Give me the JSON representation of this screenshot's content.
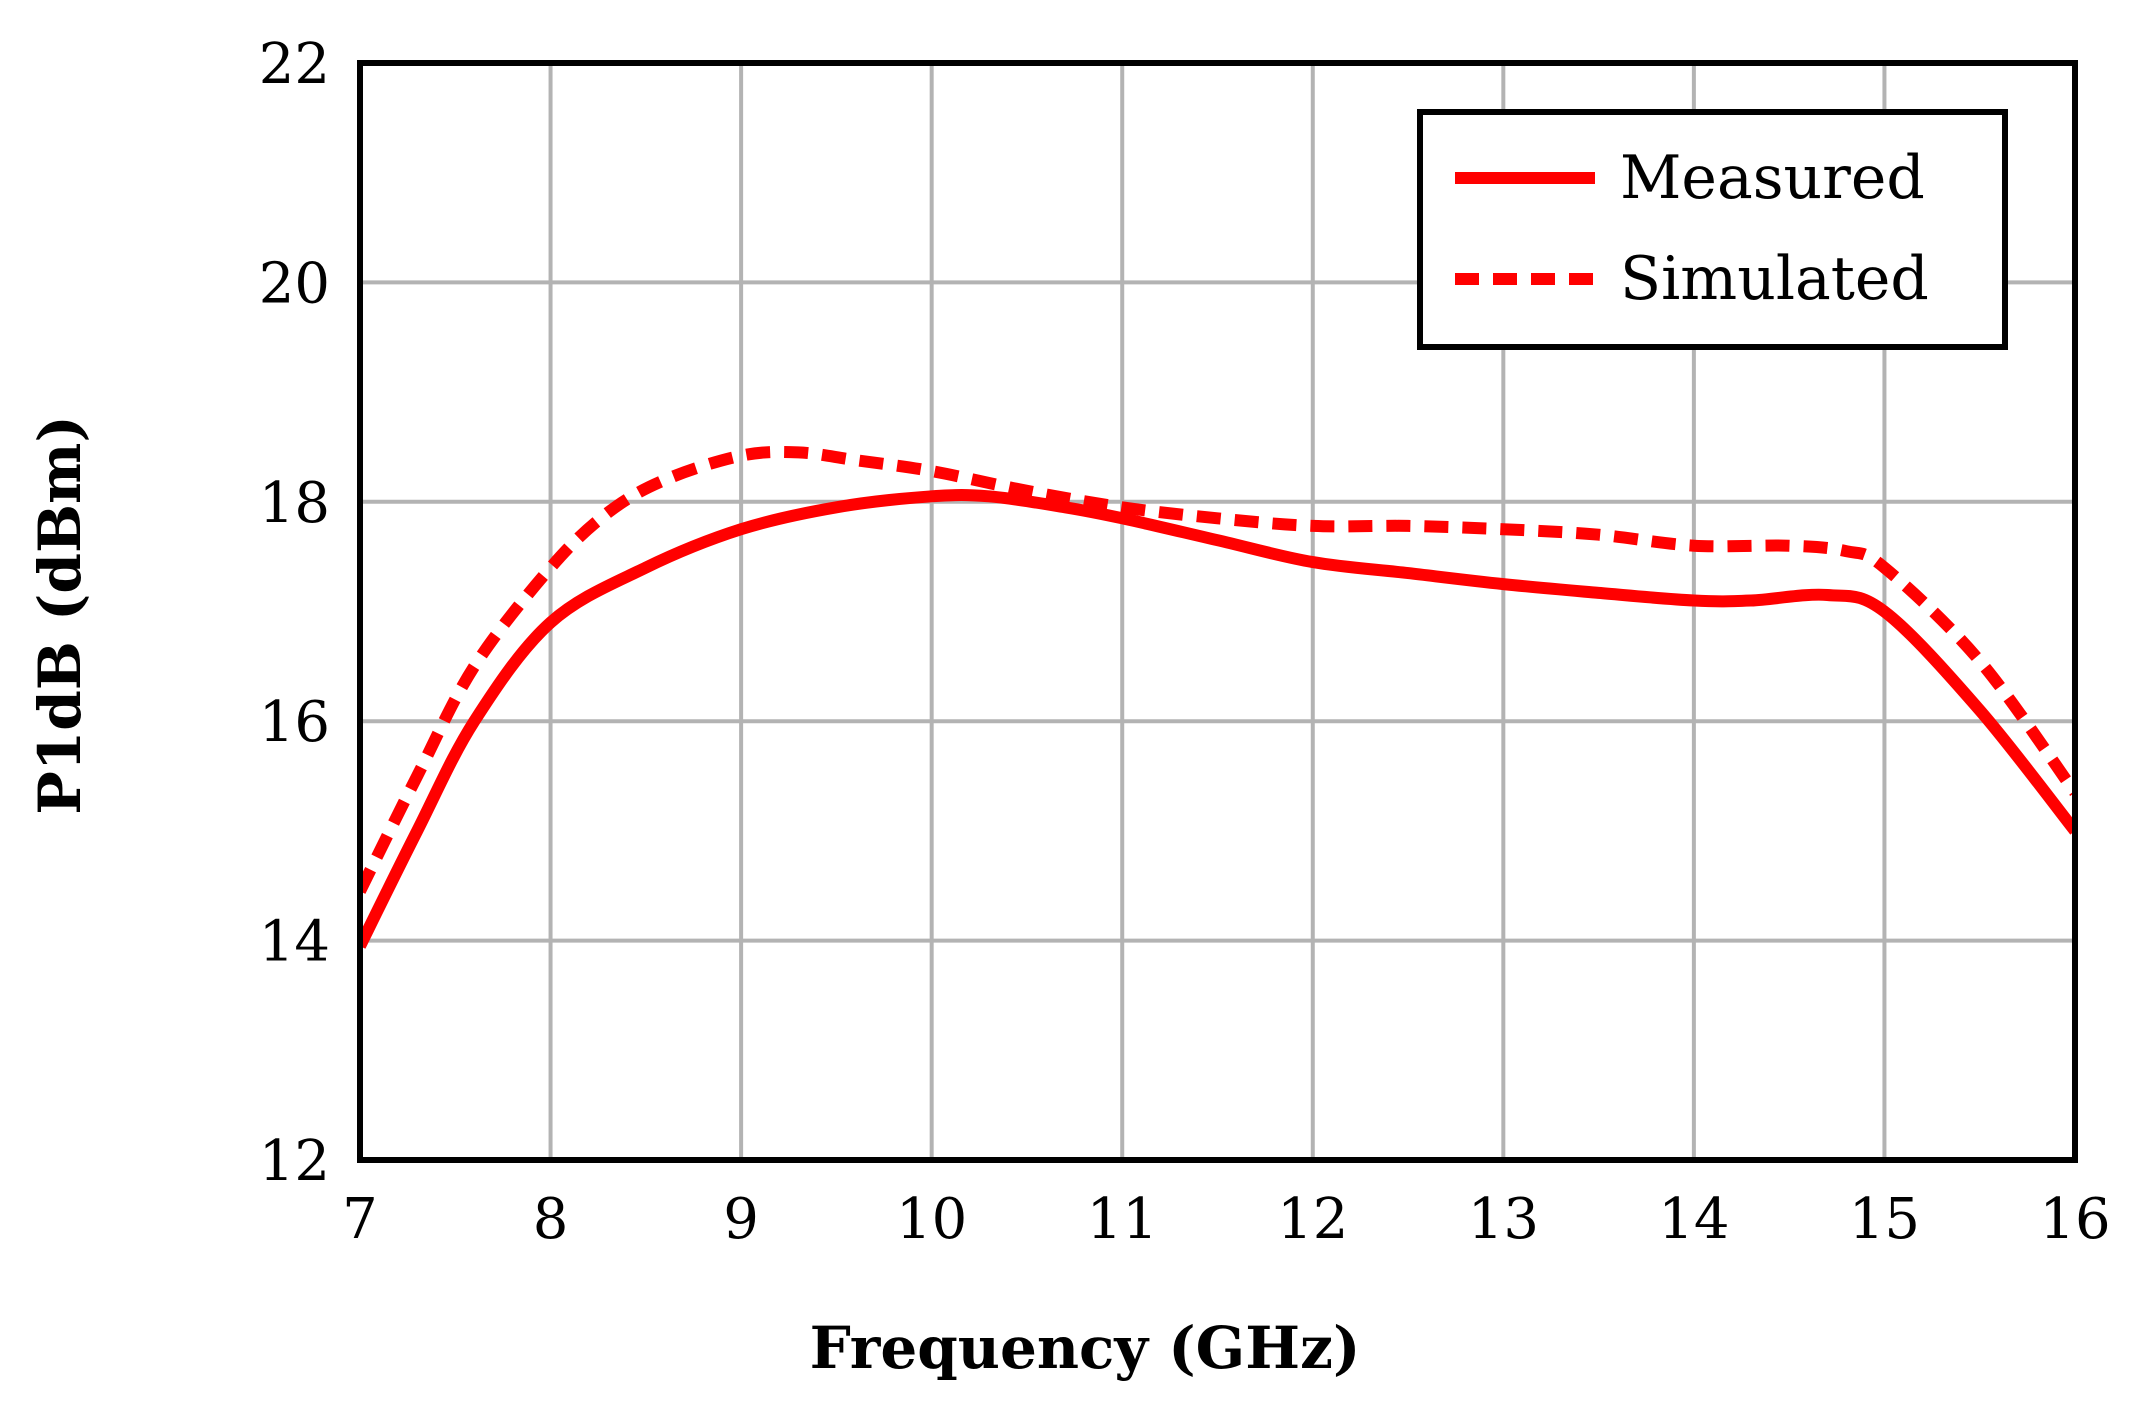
{
  "chart_data": {
    "type": "line",
    "title": "",
    "xlabel": "Frequency (GHz)",
    "ylabel": "P1dB (dBm)",
    "xlim": [
      7,
      16
    ],
    "ylim": [
      12,
      22
    ],
    "xticks": [
      7,
      8,
      9,
      10,
      11,
      12,
      13,
      14,
      15,
      16
    ],
    "yticks": [
      12,
      14,
      16,
      18,
      20,
      22
    ],
    "xtick_labels": [
      "7",
      "8",
      "9",
      "10",
      "11",
      "12",
      "13",
      "14",
      "15",
      "16"
    ],
    "ytick_labels": [
      "12",
      "14",
      "16",
      "18",
      "20",
      "22"
    ],
    "grid": true,
    "legend_position": "top-right",
    "series": [
      {
        "name": "Measured",
        "style": "solid",
        "color": "#ff0000",
        "x": [
          7.0,
          7.3,
          7.6,
          8.0,
          8.5,
          9.0,
          9.5,
          10.0,
          10.3,
          10.7,
          11.0,
          11.5,
          12.0,
          12.5,
          13.0,
          13.5,
          14.0,
          14.3,
          14.7,
          15.0,
          15.5,
          16.0
        ],
        "y": [
          13.95,
          15.0,
          16.0,
          16.9,
          17.4,
          17.75,
          17.95,
          18.05,
          18.05,
          17.95,
          17.85,
          17.65,
          17.45,
          17.35,
          17.25,
          17.17,
          17.1,
          17.1,
          17.15,
          17.0,
          16.1,
          15.0
        ]
      },
      {
        "name": "Simulated",
        "style": "dashed",
        "color": "#ff0000",
        "x": [
          7.0,
          7.3,
          7.6,
          8.0,
          8.3,
          8.6,
          9.0,
          9.3,
          9.6,
          10.0,
          10.5,
          11.0,
          11.5,
          12.0,
          12.5,
          13.0,
          13.5,
          14.0,
          14.5,
          14.8,
          15.0,
          15.5,
          16.0
        ],
        "y": [
          14.45,
          15.5,
          16.5,
          17.4,
          17.9,
          18.2,
          18.42,
          18.45,
          18.38,
          18.28,
          18.1,
          17.95,
          17.85,
          17.78,
          17.78,
          17.75,
          17.7,
          17.6,
          17.6,
          17.55,
          17.4,
          16.55,
          15.35
        ]
      }
    ]
  }
}
